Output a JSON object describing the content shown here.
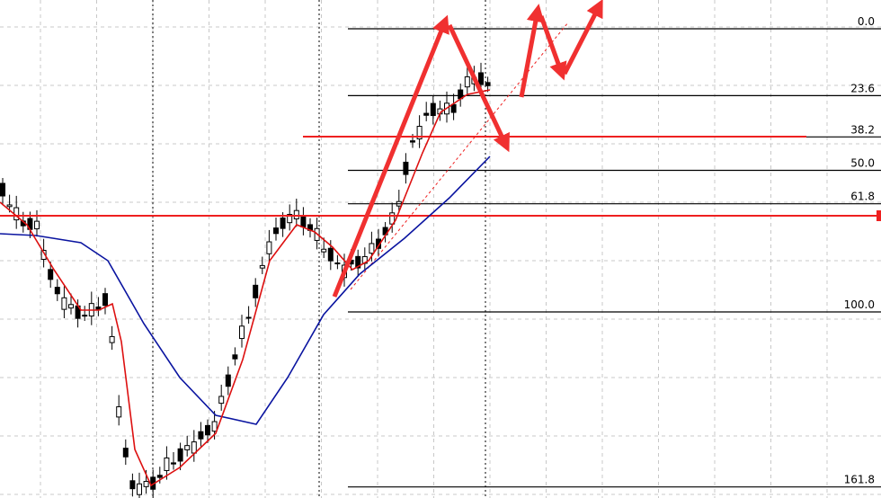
{
  "chart_data": {
    "type": "fibonacci",
    "levels": [
      {
        "value": 0,
        "label": "0.0"
      },
      23.6,
      38.2,
      {
        "value": 50,
        "label": "50.0"
      },
      61.8,
      {
        "value": 100,
        "label": "100.0"
      },
      161.8
    ]
  }
}
